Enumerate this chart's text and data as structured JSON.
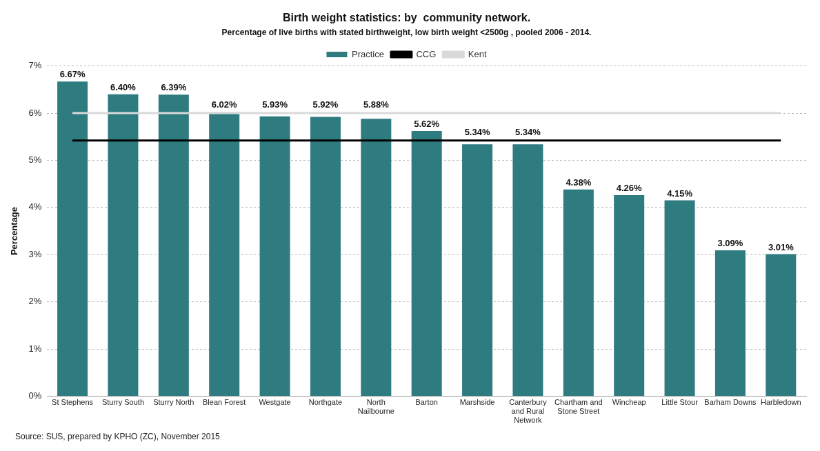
{
  "chart_data": {
    "type": "bar",
    "title": "Birth weight statistics: by  community network.",
    "subtitle": "Percentage of live births with stated birthweight, low birth weight <2500g , pooled 2006 - 2014.",
    "ylabel": "Percentage",
    "categories": [
      "St Stephens",
      "Sturry South",
      "Sturry North",
      "Blean Forest",
      "Westgate",
      "Northgate",
      "North Nailbourne",
      "Barton",
      "Marshside",
      "Canterbury and Rural Network",
      "Chartham and Stone Street",
      "Wincheap",
      "Little Stour",
      "Barham Downs",
      "Harbledown"
    ],
    "series": [
      {
        "name": "Practice",
        "color": "#2e7b80",
        "values": [
          6.67,
          6.4,
          6.39,
          6.02,
          5.93,
          5.92,
          5.88,
          5.62,
          5.34,
          5.34,
          4.38,
          4.26,
          4.15,
          3.09,
          3.01
        ],
        "value_labels": [
          "6.67%",
          "6.40%",
          "6.39%",
          "6.02%",
          "5.93%",
          "5.92%",
          "5.88%",
          "5.62%",
          "5.34%",
          "5.34%",
          "4.38%",
          "4.26%",
          "4.15%",
          "3.09%",
          "3.01%"
        ]
      },
      {
        "name": "CCG",
        "type": "line",
        "color": "#000000",
        "values": [
          5.42,
          5.42,
          5.42,
          5.42,
          5.42,
          5.42,
          5.42,
          5.42,
          5.42,
          5.42,
          5.42,
          5.42,
          5.42,
          5.42,
          5.42
        ]
      },
      {
        "name": "Kent",
        "type": "line",
        "color": "#d9d9d9",
        "values": [
          6.0,
          6.0,
          6.0,
          6.0,
          6.0,
          6.0,
          6.0,
          6.0,
          6.0,
          6.0,
          6.0,
          6.0,
          6.0,
          6.0,
          6.0
        ]
      }
    ],
    "ylim": [
      0,
      7
    ],
    "yticks": [
      {
        "value": 0,
        "label": "0%"
      },
      {
        "value": 1,
        "label": "1%"
      },
      {
        "value": 2,
        "label": "2%"
      },
      {
        "value": 3,
        "label": "3%"
      },
      {
        "value": 4,
        "label": "4%"
      },
      {
        "value": 5,
        "label": "5%"
      },
      {
        "value": 6,
        "label": "6%"
      },
      {
        "value": 7,
        "label": "7%"
      }
    ],
    "grid": "y",
    "legend": "top",
    "marker": "none",
    "line_style": "solid",
    "annotations": [
      "Source: SUS, prepared by KPHO (ZC), November 2015"
    ]
  }
}
